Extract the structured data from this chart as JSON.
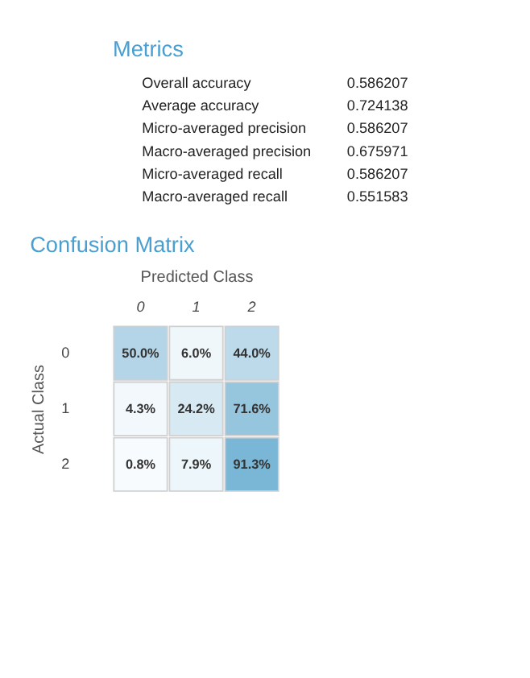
{
  "chart_data": [
    {
      "type": "other",
      "title": "Metrics",
      "annotations": [
        "Overall accuracy",
        "0.586207",
        "Average accuracy",
        "0.724138",
        "Micro-averaged precision",
        "0.586207",
        "Macro-averaged precision",
        "0.675971",
        "Micro-averaged recall",
        "0.586207",
        "Macro-averaged recall",
        "0.551583"
      ]
    },
    {
      "type": "heatmap",
      "title": "Confusion Matrix",
      "xlabel": "Predicted Class",
      "ylabel": "Actual Class",
      "categories": [
        "0",
        "1",
        "2"
      ],
      "y_categories": [
        "0",
        "1",
        "2"
      ],
      "cells": [
        [
          50.0,
          6.0,
          44.0
        ],
        [
          4.3,
          24.2,
          71.6
        ],
        [
          0.8,
          7.9,
          91.3
        ]
      ],
      "cell_labels": [
        [
          "50.0%",
          "6.0%",
          "44.0%"
        ],
        [
          "4.3%",
          "24.2%",
          "71.6%"
        ],
        [
          "0.8%",
          "7.9%",
          "91.3%"
        ]
      ]
    }
  ]
}
